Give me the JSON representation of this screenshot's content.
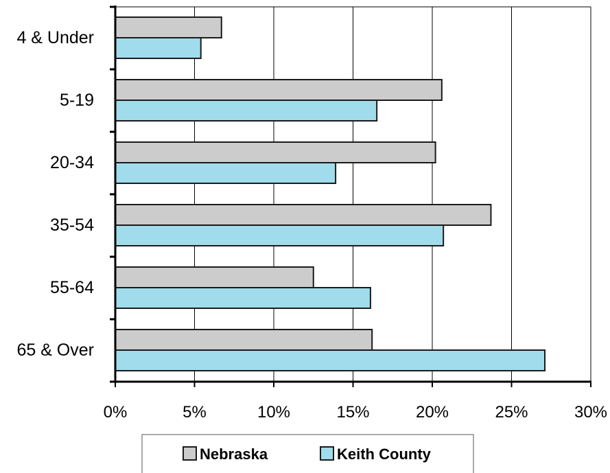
{
  "chart_data": {
    "type": "bar",
    "orientation": "horizontal",
    "categories": [
      "4 & Under",
      "5-19",
      "20-34",
      "35-54",
      "55-64",
      "65 & Over"
    ],
    "series": [
      {
        "name": "Nebraska",
        "values": [
          6.7,
          20.6,
          20.2,
          23.7,
          12.5,
          16.2
        ],
        "color": "#cccccc"
      },
      {
        "name": "Keith County",
        "values": [
          5.4,
          16.5,
          13.9,
          20.7,
          16.1,
          27.1
        ],
        "color": "#a0dcec"
      }
    ],
    "xlim": [
      0,
      30
    ],
    "xticks": [
      0,
      5,
      10,
      15,
      20,
      25,
      30
    ],
    "tick_format": "percent",
    "grid": "vertical",
    "legend_position": "bottom"
  }
}
